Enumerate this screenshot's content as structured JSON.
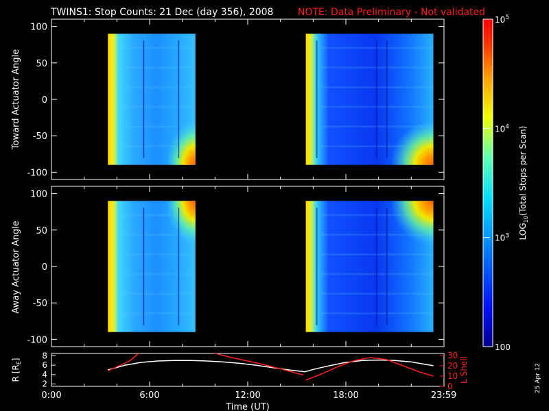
{
  "header": {
    "title": "TWINS1: Stop Counts: 21 Dec (day 356), 2008",
    "note": "NOTE: Data Preliminary - Not validated",
    "note_color": "#ff1a1a"
  },
  "date_stamp": "25 Apr 12",
  "chart_data": [
    {
      "type": "heatmap",
      "title": "",
      "ylabel": "Toward Actuator Angle",
      "ylim": [
        -110,
        110
      ],
      "yticks": [
        -100,
        -50,
        0,
        50,
        100
      ],
      "ytick_labels": [
        "-100",
        "-50",
        "0",
        "50",
        "100"
      ],
      "xlim": [
        0,
        24
      ],
      "angle_range": [
        -90,
        90
      ],
      "data_intervals_hours": [
        [
          3.45,
          8.8
        ],
        [
          15.55,
          23.35
        ]
      ],
      "description_values": "log10 total stops per scan; high near start of each interval and at low angles late in interval"
    },
    {
      "type": "heatmap",
      "title": "",
      "ylabel": "Away Actuator Angle",
      "ylim": [
        -110,
        110
      ],
      "yticks": [
        -100,
        -50,
        0,
        50,
        100
      ],
      "ytick_labels": [
        "-100",
        "-50",
        "0",
        "50",
        "100"
      ],
      "xlim": [
        0,
        24
      ],
      "angle_range": [
        -90,
        90
      ],
      "data_intervals_hours": [
        [
          3.45,
          8.8
        ],
        [
          15.55,
          23.35
        ]
      ]
    },
    {
      "type": "line",
      "ylabel_left": "R [R",
      "ylabel_left_sub": "E",
      "ylabel_left_end": "]",
      "ylim_left": [
        1.5,
        8.5
      ],
      "yticks_left": [
        2,
        4,
        6,
        8
      ],
      "ytick_labels_left": [
        "2",
        "4",
        "6",
        "8"
      ],
      "ylabel_right": "L Shell",
      "ylim_right": [
        0,
        32
      ],
      "yticks_right": [
        0,
        10,
        20,
        30
      ],
      "ytick_labels_right": [
        "0",
        "10",
        "20",
        "30"
      ],
      "xlabel": "Time (UT)",
      "xlim": [
        0,
        24
      ],
      "xticks": [
        0,
        6,
        12,
        18,
        23.983
      ],
      "xtick_labels": [
        "0:00",
        "6:00",
        "12:00",
        "18:00",
        "23:59"
      ],
      "series": [
        {
          "axis": "left",
          "color": "#ffffff",
          "x": [
            3.45,
            4.5,
            5.5,
            6.5,
            7.5,
            8.5,
            9.5,
            10.5,
            11.5,
            12.5,
            13.5,
            14.5,
            15.5,
            16.0,
            17.0,
            18.0,
            19.0,
            20.0,
            21.0,
            22.0,
            23.35
          ],
          "y": [
            5.0,
            6.0,
            6.6,
            6.9,
            7.0,
            7.0,
            6.9,
            6.7,
            6.4,
            6.0,
            5.5,
            5.0,
            4.6,
            5.1,
            5.9,
            6.6,
            7.0,
            7.1,
            7.0,
            6.7,
            5.9
          ]
        },
        {
          "axis": "right",
          "color": "#ff2020",
          "segments": [
            {
              "x": [
                3.45,
                4.8,
                5.4
              ],
              "y": [
                15,
                25,
                33
              ]
            },
            {
              "x": [
                9.8,
                11.0,
                12.5,
                14.0,
                15.4
              ],
              "y": [
                33,
                28,
                23,
                17,
                11
              ]
            },
            {
              "x": [
                15.55,
                16.5,
                17.5,
                18.5,
                19.5,
                20.5,
                21.5,
                22.5,
                23.35
              ],
              "y": [
                6,
                12,
                19,
                25,
                28,
                26,
                20,
                14,
                10
              ]
            }
          ]
        }
      ]
    }
  ],
  "colorbar": {
    "label_prefix": "LOG",
    "label_sub": "10",
    "label_suffix": "(Total Stops per Scan)",
    "ticks": [
      {
        "value": 100,
        "label": "100"
      },
      {
        "value": 1000,
        "label_base": "10",
        "label_exp": "3"
      },
      {
        "value": 10000,
        "label_base": "10",
        "label_exp": "4"
      },
      {
        "value": 100000,
        "label_base": "10",
        "label_exp": "5"
      }
    ],
    "range": [
      100,
      100000
    ]
  }
}
